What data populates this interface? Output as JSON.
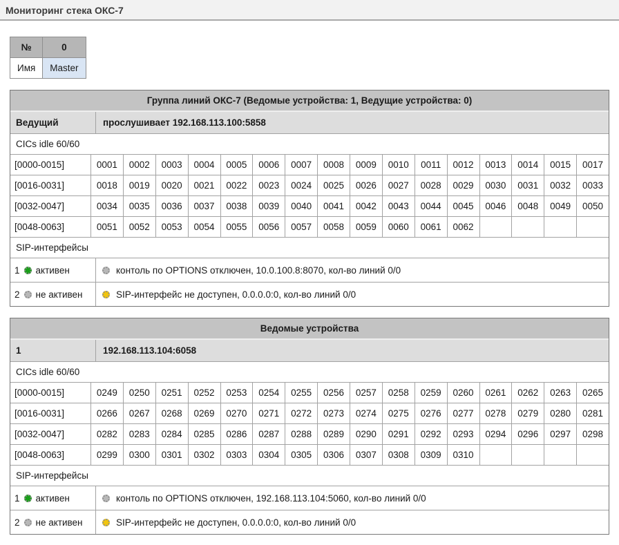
{
  "header": {
    "title": "Мониторинг стека ОКС-7"
  },
  "device_table": {
    "rows": [
      {
        "label": "№",
        "value": "0"
      },
      {
        "label": "Имя",
        "value": "Master"
      }
    ]
  },
  "panels": [
    {
      "title": "Группа линий ОКС-7 (Ведомые устройства: 1, Ведущие устройства: 0)",
      "subheader": {
        "label": "Ведущий",
        "value": "прослушивает 192.168.113.100:5858"
      },
      "cics_label": "CICs idle 60/60",
      "cic_rows": [
        {
          "range": "[0000-0015]",
          "values": [
            "0001",
            "0002",
            "0003",
            "0004",
            "0005",
            "0006",
            "0007",
            "0008",
            "0009",
            "0010",
            "0011",
            "0012",
            "0013",
            "0014",
            "0015",
            "0017"
          ]
        },
        {
          "range": "[0016-0031]",
          "values": [
            "0018",
            "0019",
            "0020",
            "0021",
            "0022",
            "0023",
            "0024",
            "0025",
            "0026",
            "0027",
            "0028",
            "0029",
            "0030",
            "0031",
            "0032",
            "0033"
          ]
        },
        {
          "range": "[0032-0047]",
          "values": [
            "0034",
            "0035",
            "0036",
            "0037",
            "0038",
            "0039",
            "0040",
            "0041",
            "0042",
            "0043",
            "0044",
            "0045",
            "0046",
            "0048",
            "0049",
            "0050"
          ]
        },
        {
          "range": "[0048-0063]",
          "values": [
            "0051",
            "0052",
            "0053",
            "0054",
            "0055",
            "0056",
            "0057",
            "0058",
            "0059",
            "0060",
            "0061",
            "0062",
            "",
            "",
            "",
            ""
          ]
        }
      ],
      "sip_label": "SIP-интерфейсы",
      "sip_rows": [
        {
          "num": "1",
          "status": "активен",
          "status_led": "green",
          "message_led": "gray",
          "message": "контоль по OPTIONS отключен, 10.0.100.8:8070, кол-во линий 0/0"
        },
        {
          "num": "2",
          "status": "не активен",
          "status_led": "gray",
          "message_led": "yellow",
          "message": "SIP-интерфейс не доступен, 0.0.0.0:0, кол-во линий 0/0"
        }
      ]
    },
    {
      "title": "Ведомые устройства",
      "subheader": {
        "label": "1",
        "value": "192.168.113.104:6058"
      },
      "cics_label": "CICs idle 60/60",
      "cic_rows": [
        {
          "range": "[0000-0015]",
          "values": [
            "0249",
            "0250",
            "0251",
            "0252",
            "0253",
            "0254",
            "0255",
            "0256",
            "0257",
            "0258",
            "0259",
            "0260",
            "0261",
            "0262",
            "0263",
            "0265"
          ]
        },
        {
          "range": "[0016-0031]",
          "values": [
            "0266",
            "0267",
            "0268",
            "0269",
            "0270",
            "0271",
            "0272",
            "0273",
            "0274",
            "0275",
            "0276",
            "0277",
            "0278",
            "0279",
            "0280",
            "0281"
          ]
        },
        {
          "range": "[0032-0047]",
          "values": [
            "0282",
            "0283",
            "0284",
            "0285",
            "0286",
            "0287",
            "0288",
            "0289",
            "0290",
            "0291",
            "0292",
            "0293",
            "0294",
            "0296",
            "0297",
            "0298"
          ]
        },
        {
          "range": "[0048-0063]",
          "values": [
            "0299",
            "0300",
            "0301",
            "0302",
            "0303",
            "0304",
            "0305",
            "0306",
            "0307",
            "0308",
            "0309",
            "0310",
            "",
            "",
            "",
            ""
          ]
        }
      ],
      "sip_label": "SIP-интерфейсы",
      "sip_rows": [
        {
          "num": "1",
          "status": "активен",
          "status_led": "green",
          "message_led": "gray",
          "message": "контоль по OPTIONS отключен, 192.168.113.104:5060, кол-во линий 0/0"
        },
        {
          "num": "2",
          "status": "не активен",
          "status_led": "gray",
          "message_led": "yellow",
          "message": "SIP-интерфейс не доступен, 0.0.0.0:0, кол-во линий 0/0"
        }
      ]
    }
  ],
  "colors": {
    "led_green": "#18a018",
    "led_gray": "#b8b8b8",
    "led_yellow": "#f2c50c"
  }
}
